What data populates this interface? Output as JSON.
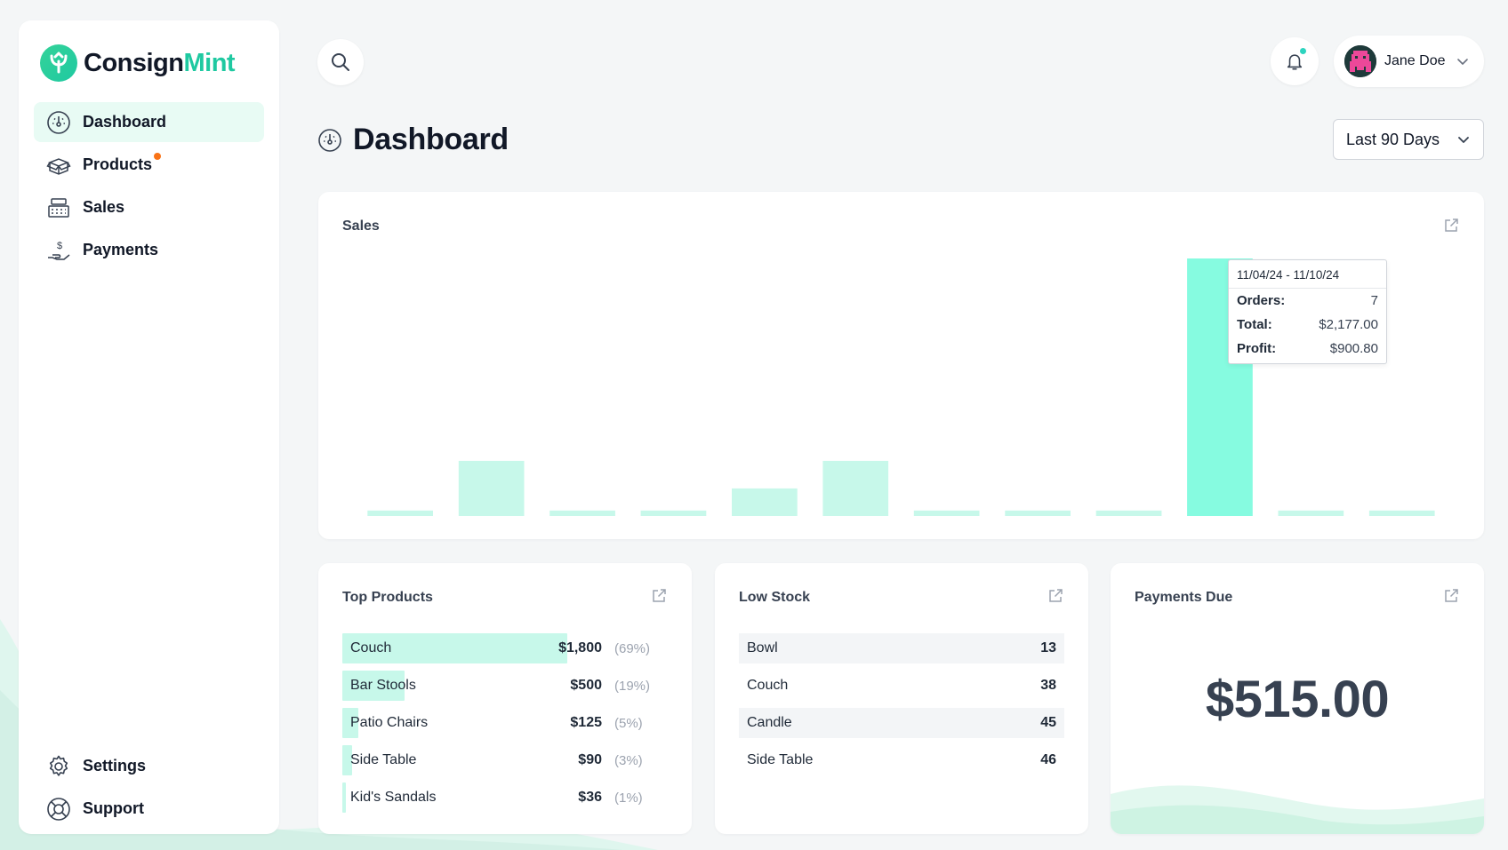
{
  "app": {
    "brand_a": "Consign",
    "brand_b": "Mint",
    "accent": "#1fc9a1"
  },
  "sidebar": {
    "items": [
      {
        "label": "Dashboard",
        "icon": "dashboard-gauge-icon",
        "active": true
      },
      {
        "label": "Products",
        "icon": "box-open-icon",
        "badge": true
      },
      {
        "label": "Sales",
        "icon": "cash-register-icon"
      },
      {
        "label": "Payments",
        "icon": "hand-dollar-icon"
      }
    ],
    "bottom": [
      {
        "label": "Settings",
        "icon": "gear-icon"
      },
      {
        "label": "Support",
        "icon": "lifebuoy-icon"
      }
    ]
  },
  "header": {
    "user_name": "Jane Doe",
    "page_title": "Dashboard",
    "range": "Last 90 Days"
  },
  "sales": {
    "title": "Sales",
    "tooltip": {
      "range": "11/04/24 - 11/10/24",
      "orders_label": "Orders:",
      "orders": "7",
      "total_label": "Total:",
      "total": "$2,177.00",
      "profit_label": "Profit:",
      "profit": "$900.80"
    }
  },
  "chart_data": {
    "type": "bar",
    "values": [
      0.15,
      1.5,
      0.15,
      0.15,
      0.75,
      1.5,
      0.15,
      0.15,
      0.15,
      7,
      0.15,
      0.15
    ],
    "highlight_index": 9,
    "bar_color": "#c7f8ea",
    "highlight_color": "#86fbe0",
    "ylim": [
      0,
      7
    ]
  },
  "top_products": {
    "title": "Top Products",
    "items": [
      {
        "name": "Couch",
        "value": "$1,800",
        "pct": "(69%)",
        "share": 0.69
      },
      {
        "name": "Bar Stools",
        "value": "$500",
        "pct": "(19%)",
        "share": 0.19
      },
      {
        "name": "Patio Chairs",
        "value": "$125",
        "pct": "(5%)",
        "share": 0.05
      },
      {
        "name": "Side Table",
        "value": "$90",
        "pct": "(3%)",
        "share": 0.03
      },
      {
        "name": "Kid's Sandals",
        "value": "$36",
        "pct": "(1%)",
        "share": 0.01
      }
    ]
  },
  "low_stock": {
    "title": "Low Stock",
    "items": [
      {
        "name": "Bowl",
        "qty": "13"
      },
      {
        "name": "Couch",
        "qty": "38"
      },
      {
        "name": "Candle",
        "qty": "45"
      },
      {
        "name": "Side Table",
        "qty": "46"
      }
    ]
  },
  "payments_due": {
    "title": "Payments Due",
    "amount": "$515.00"
  }
}
